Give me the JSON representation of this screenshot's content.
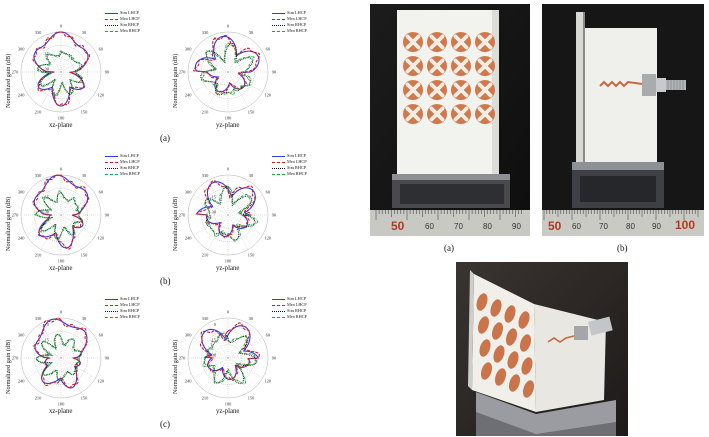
{
  "legend_items": [
    {
      "label": "Sim LHCP",
      "color": "#2b3df0",
      "style": "solid"
    },
    {
      "label": "Mea LHCP",
      "color": "#e01818",
      "style": "dashed"
    },
    {
      "label": "Sim RHCP",
      "color": "#111111",
      "style": "dotted"
    },
    {
      "label": "Mea RHCP",
      "color": "#18a838",
      "style": "dashdot"
    }
  ],
  "common": {
    "ylabel": "Normalized gain (dB)",
    "xz_label": "xz-plane",
    "yz_label": "yz-plane",
    "angle_ticks": [
      "0",
      "30",
      "60",
      "90",
      "120",
      "150",
      "180",
      "210",
      "240",
      "270",
      "300",
      "330"
    ],
    "radial_ticks": [
      "0",
      "-15",
      "-30"
    ]
  },
  "captions": {
    "a": "(a)",
    "b": "(b)",
    "c": "(c)"
  },
  "photo_captions": {
    "a": "(a)",
    "b": "(b)"
  },
  "ruler_a": [
    "50",
    "60",
    "70",
    "80",
    "90"
  ],
  "ruler_b": [
    "50",
    "60",
    "70",
    "80",
    "90",
    "100"
  ],
  "chart_data": [
    {
      "type": "polar",
      "panel": "a",
      "plane": "xz-plane",
      "rlim": [
        -30,
        0
      ],
      "ylabel": "Normalized gain (dB)",
      "series": [
        {
          "name": "Sim LHCP",
          "pattern": "lhcp_xz"
        },
        {
          "name": "Mea LHCP",
          "pattern": "lhcp_xz"
        },
        {
          "name": "Sim RHCP",
          "pattern": "rhcp_xz"
        },
        {
          "name": "Mea RHCP",
          "pattern": "rhcp_xz"
        }
      ]
    },
    {
      "type": "polar",
      "panel": "a",
      "plane": "yz-plane",
      "rlim": [
        -30,
        0
      ],
      "ylabel": "Normalized gain (dB)",
      "series": [
        {
          "name": "Sim LHCP",
          "pattern": "lhcp_yz"
        },
        {
          "name": "Mea LHCP",
          "pattern": "lhcp_yz"
        },
        {
          "name": "Sim RHCP",
          "pattern": "rhcp_yz"
        },
        {
          "name": "Mea RHCP",
          "pattern": "rhcp_yz"
        }
      ]
    },
    {
      "type": "polar",
      "panel": "b",
      "plane": "xz-plane",
      "rlim": [
        -30,
        0
      ],
      "ylabel": "Normalized gain (dB)",
      "series": [
        {
          "name": "Sim LHCP",
          "pattern": "lhcp_xz"
        },
        {
          "name": "Mea LHCP",
          "pattern": "lhcp_xz"
        },
        {
          "name": "Sim RHCP",
          "pattern": "rhcp_xz"
        },
        {
          "name": "Mea RHCP",
          "pattern": "rhcp_xz"
        }
      ]
    },
    {
      "type": "polar",
      "panel": "b",
      "plane": "yz-plane",
      "rlim": [
        -30,
        0
      ],
      "ylabel": "Normalized gain (dB)",
      "series": [
        {
          "name": "Sim LHCP",
          "pattern": "lhcp_yz"
        },
        {
          "name": "Mea LHCP",
          "pattern": "lhcp_yz"
        },
        {
          "name": "Sim RHCP",
          "pattern": "rhcp_yz"
        },
        {
          "name": "Mea RHCP",
          "pattern": "rhcp_yz"
        }
      ]
    },
    {
      "type": "polar",
      "panel": "c",
      "plane": "xz-plane",
      "rlim": [
        -30,
        0
      ],
      "ylabel": "Normalized gain (dB)",
      "series": [
        {
          "name": "Sim LHCP",
          "pattern": "lhcp_xz"
        },
        {
          "name": "Mea LHCP",
          "pattern": "lhcp_xz"
        },
        {
          "name": "Sim RHCP",
          "pattern": "rhcp_xz"
        },
        {
          "name": "Mea RHCP",
          "pattern": "rhcp_xz"
        }
      ]
    },
    {
      "type": "polar",
      "panel": "c",
      "plane": "yz-plane",
      "rlim": [
        -30,
        0
      ],
      "ylabel": "Normalized gain (dB)",
      "series": [
        {
          "name": "Sim LHCP",
          "pattern": "lhcp_yz"
        },
        {
          "name": "Mea LHCP",
          "pattern": "lhcp_yz"
        },
        {
          "name": "Sim RHCP",
          "pattern": "rhcp_yz"
        },
        {
          "name": "Mea RHCP",
          "pattern": "rhcp_yz"
        }
      ]
    }
  ]
}
